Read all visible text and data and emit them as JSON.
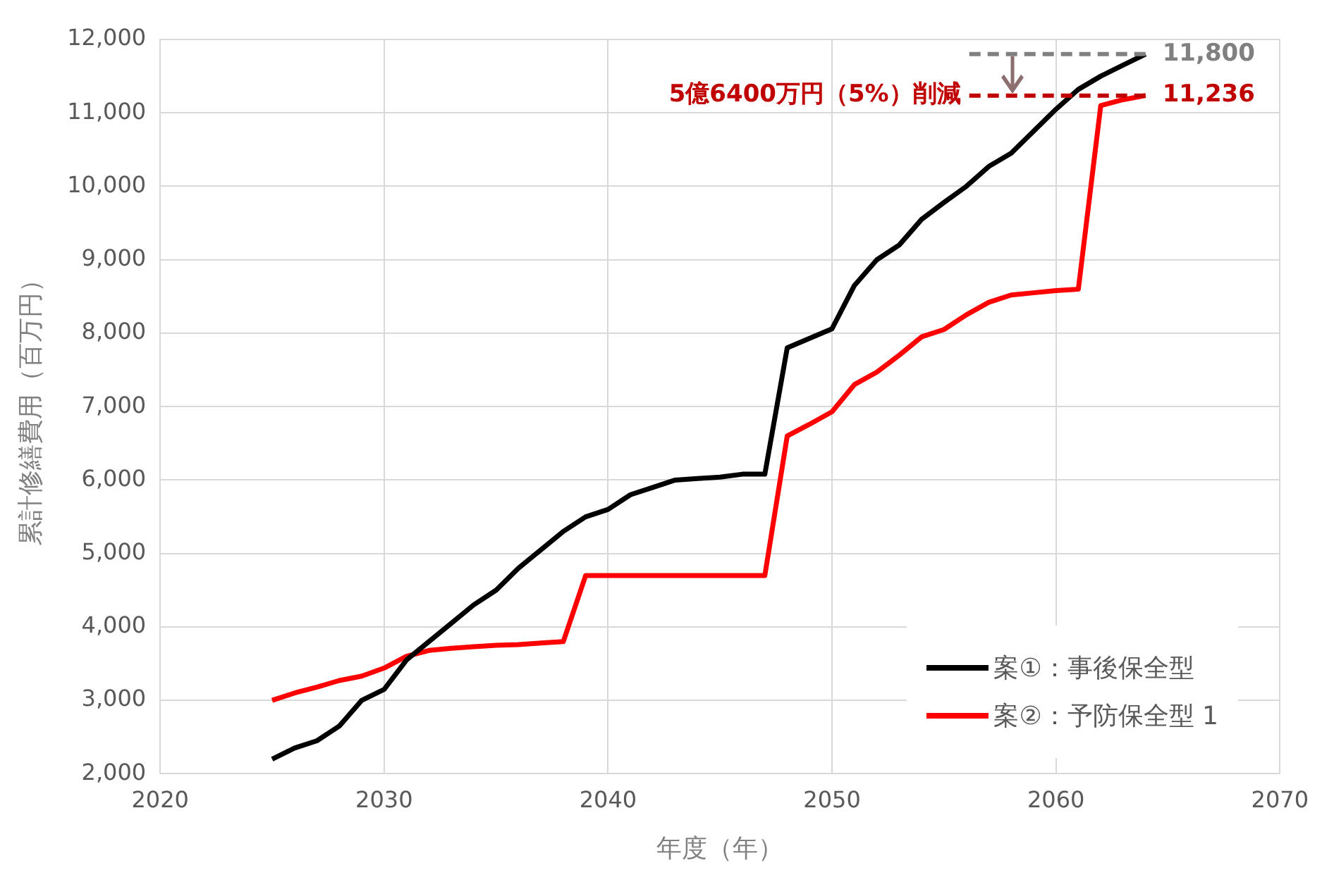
{
  "chart_data": {
    "type": "line",
    "xlabel": "年度（年）",
    "ylabel": "累計修繕費用（百万円）",
    "x": [
      2025,
      2026,
      2027,
      2028,
      2029,
      2030,
      2031,
      2032,
      2033,
      2034,
      2035,
      2036,
      2037,
      2038,
      2039,
      2040,
      2041,
      2042,
      2043,
      2044,
      2045,
      2046,
      2047,
      2048,
      2049,
      2050,
      2051,
      2052,
      2053,
      2054,
      2055,
      2056,
      2057,
      2058,
      2059,
      2060,
      2061,
      2062,
      2063,
      2064
    ],
    "series": [
      {
        "name": "案①：事後保全型",
        "color": "#000000",
        "values": [
          2200,
          2350,
          2450,
          2650,
          3000,
          3150,
          3550,
          3800,
          4050,
          4300,
          4500,
          4800,
          5050,
          5300,
          5500,
          5600,
          5800,
          5900,
          6000,
          6020,
          6040,
          6080,
          6080,
          7800,
          7930,
          8060,
          8650,
          9000,
          9200,
          9550,
          9780,
          10000,
          10270,
          10450,
          10750,
          11050,
          11320,
          11500,
          11650,
          11800
        ]
      },
      {
        "name": "案②：予防保全型 1",
        "color": "#ff0000",
        "values": [
          3000,
          3100,
          3180,
          3270,
          3330,
          3440,
          3600,
          3680,
          3710,
          3730,
          3750,
          3760,
          3780,
          3800,
          4700,
          4700,
          4700,
          4700,
          4700,
          4700,
          4700,
          4700,
          4700,
          6600,
          6760,
          6930,
          7300,
          7470,
          7700,
          7950,
          8050,
          8250,
          8420,
          8520,
          8550,
          8580,
          8600,
          11100,
          11180,
          11236
        ]
      }
    ],
    "xlim": [
      2020,
      2070
    ],
    "xticks": [
      2020,
      2030,
      2040,
      2050,
      2060,
      2070
    ],
    "ylim": [
      2000,
      12000
    ],
    "yticks": [
      {
        "value": 2000,
        "label": "2,000"
      },
      {
        "value": 3000,
        "label": "3,000"
      },
      {
        "value": 4000,
        "label": "4,000"
      },
      {
        "value": 5000,
        "label": "5,000"
      },
      {
        "value": 6000,
        "label": "6,000"
      },
      {
        "value": 7000,
        "label": "7,000"
      },
      {
        "value": 8000,
        "label": "8,000"
      },
      {
        "value": 9000,
        "label": "9,000"
      },
      {
        "value": 10000,
        "label": "10,000"
      },
      {
        "value": 11000,
        "label": "11,000"
      },
      {
        "value": 12000,
        "label": "12,000"
      }
    ],
    "ref_lines": [
      {
        "axis": "y",
        "value": 11800,
        "label": "11,800",
        "color": "#808080",
        "line_style": "dashed"
      },
      {
        "axis": "y",
        "value": 11236,
        "label": "11,236",
        "color": "#c00000",
        "line_style": "dashed"
      }
    ],
    "annotations": [
      "5億6400万円（5%）削減"
    ],
    "grid": true,
    "legend": "bottom right",
    "marker": "none",
    "line_style": "solid"
  }
}
